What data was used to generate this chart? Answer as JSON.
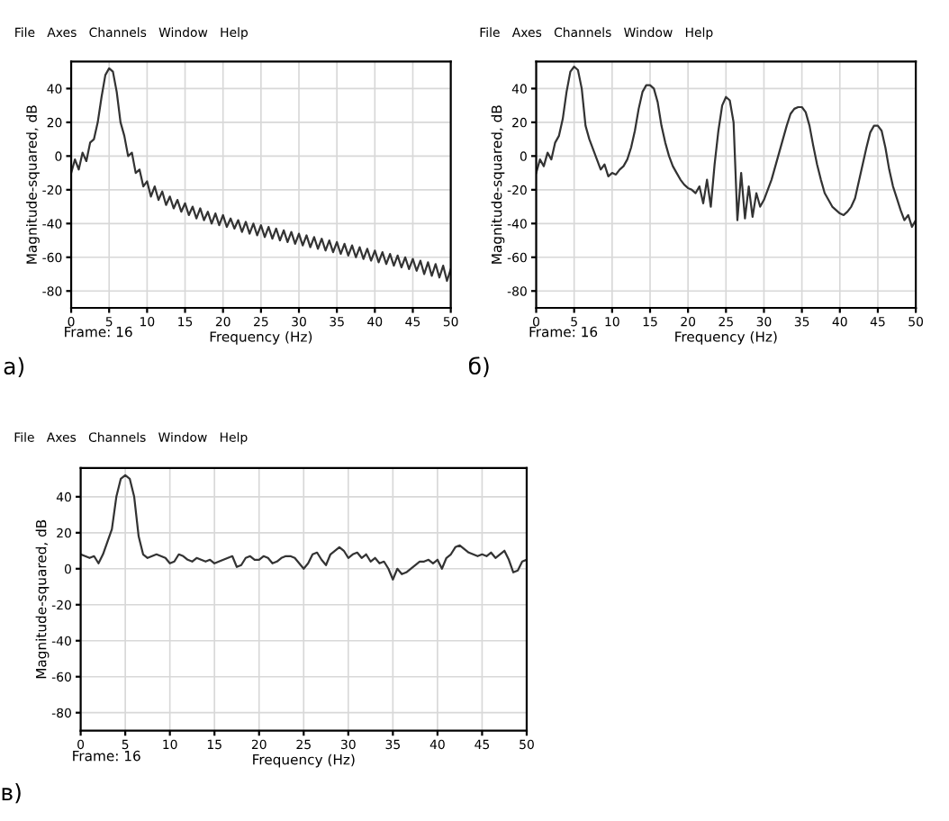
{
  "chart_data": [
    {
      "type": "line",
      "xlabel": "Frequency (Hz)",
      "ylabel": "Magnitude-squared, dB",
      "annotations": [
        "File   Axes   Channels   Window   Help",
        "Frame: 16",
        "а)"
      ],
      "xlim": [
        0,
        50
      ],
      "ylim": [
        -90,
        56
      ],
      "xticks": [
        0,
        5,
        10,
        15,
        20,
        25,
        30,
        35,
        40,
        45,
        50
      ],
      "yticks": [
        -80,
        -60,
        -40,
        -20,
        0,
        20,
        40
      ],
      "grid": true,
      "line_style": "solid",
      "x": [
        0,
        0.5,
        1,
        1.5,
        2,
        2.5,
        3,
        3.5,
        4,
        4.5,
        5,
        5.5,
        6,
        6.5,
        7,
        7.5,
        8,
        8.5,
        9,
        9.5,
        10,
        10.5,
        11,
        11.5,
        12,
        12.5,
        13,
        13.5,
        14,
        14.5,
        15,
        15.5,
        16,
        16.5,
        17,
        17.5,
        18,
        18.5,
        19,
        19.5,
        20,
        20.5,
        21,
        21.5,
        22,
        22.5,
        23,
        23.5,
        24,
        24.5,
        25,
        25.5,
        26,
        26.5,
        27,
        27.5,
        28,
        28.5,
        29,
        29.5,
        30,
        30.5,
        31,
        31.5,
        32,
        32.5,
        33,
        33.5,
        34,
        34.5,
        35,
        35.5,
        36,
        36.5,
        37,
        37.5,
        38,
        38.5,
        39,
        39.5,
        40,
        40.5,
        41,
        41.5,
        42,
        42.5,
        43,
        43.5,
        44,
        44.5,
        45,
        45.5,
        46,
        46.5,
        47,
        47.5,
        48,
        48.5,
        49,
        49.5,
        50
      ],
      "series": [
        {
          "color": "#333333",
          "values": [
            -10,
            -2,
            -8,
            2,
            -3,
            8,
            10,
            20,
            35,
            48,
            52,
            50,
            38,
            20,
            12,
            0,
            2,
            -10,
            -8,
            -18,
            -15,
            -24,
            -18,
            -26,
            -21,
            -29,
            -24,
            -31,
            -26,
            -33,
            -28,
            -35,
            -30,
            -37,
            -31,
            -38,
            -33,
            -40,
            -34,
            -41,
            -35,
            -42,
            -37,
            -43,
            -38,
            -45,
            -39,
            -46,
            -40,
            -47,
            -41,
            -48,
            -42,
            -49,
            -43,
            -50,
            -44,
            -51,
            -45,
            -52,
            -46,
            -53,
            -47,
            -54,
            -48,
            -55,
            -49,
            -56,
            -50,
            -57,
            -51,
            -58,
            -52,
            -59,
            -53,
            -60,
            -54,
            -61,
            -55,
            -62,
            -56,
            -63,
            -57,
            -64,
            -58,
            -65,
            -59,
            -66,
            -60,
            -67,
            -61,
            -68,
            -62,
            -70,
            -63,
            -71,
            -64,
            -72,
            -65,
            -74,
            -67
          ]
        }
      ]
    },
    {
      "type": "line",
      "xlabel": "Frequency (Hz)",
      "ylabel": "Magnitude-squared, dB",
      "annotations": [
        "File   Axes   Channels   Window   Help",
        "Frame: 16",
        "б)"
      ],
      "xlim": [
        0,
        50
      ],
      "ylim": [
        -90,
        56
      ],
      "xticks": [
        0,
        5,
        10,
        15,
        20,
        25,
        30,
        35,
        40,
        45,
        50
      ],
      "yticks": [
        -80,
        -60,
        -40,
        -20,
        0,
        20,
        40
      ],
      "grid": true,
      "line_style": "solid",
      "x": [
        0,
        0.5,
        1,
        1.5,
        2,
        2.5,
        3,
        3.5,
        4,
        4.5,
        5,
        5.5,
        6,
        6.5,
        7,
        7.5,
        8,
        8.5,
        9,
        9.5,
        10,
        10.5,
        11,
        11.5,
        12,
        12.5,
        13,
        13.5,
        14,
        14.5,
        15,
        15.5,
        16,
        16.5,
        17,
        17.5,
        18,
        18.5,
        19,
        19.5,
        20,
        20.5,
        21,
        21.5,
        22,
        22.5,
        23,
        23.5,
        24,
        24.5,
        25,
        25.5,
        26,
        26.5,
        27,
        27.5,
        28,
        28.5,
        29,
        29.5,
        30,
        30.5,
        31,
        31.5,
        32,
        32.5,
        33,
        33.5,
        34,
        34.5,
        35,
        35.5,
        36,
        36.5,
        37,
        37.5,
        38,
        38.5,
        39,
        39.5,
        40,
        40.5,
        41,
        41.5,
        42,
        42.5,
        43,
        43.5,
        44,
        44.5,
        45,
        45.5,
        46,
        46.5,
        47,
        47.5,
        48,
        48.5,
        49,
        49.5,
        50
      ],
      "series": [
        {
          "color": "#333333",
          "values": [
            -10,
            -2,
            -6,
            2,
            -2,
            8,
            12,
            22,
            38,
            50,
            53,
            51,
            40,
            18,
            10,
            4,
            -2,
            -8,
            -5,
            -12,
            -10,
            -11,
            -8,
            -6,
            -2,
            5,
            15,
            28,
            38,
            42,
            42,
            40,
            32,
            18,
            8,
            0,
            -6,
            -10,
            -14,
            -17,
            -19,
            -20,
            -22,
            -18,
            -28,
            -14,
            -30,
            -5,
            15,
            30,
            35,
            33,
            20,
            -38,
            -10,
            -37,
            -18,
            -36,
            -22,
            -30,
            -26,
            -20,
            -14,
            -6,
            2,
            10,
            18,
            25,
            28,
            29,
            29,
            26,
            18,
            6,
            -5,
            -14,
            -22,
            -26,
            -30,
            -32,
            -34,
            -35,
            -33,
            -30,
            -25,
            -15,
            -5,
            5,
            14,
            18,
            18,
            15,
            5,
            -8,
            -18,
            -25,
            -32,
            -38,
            -35,
            -42,
            -38
          ]
        }
      ]
    },
    {
      "type": "line",
      "xlabel": "Frequency (Hz)",
      "ylabel": "Magnitude-squared, dB",
      "annotations": [
        "File   Axes   Channels   Window   Help",
        "Frame: 16",
        "в)"
      ],
      "xlim": [
        0,
        50
      ],
      "ylim": [
        -90,
        56
      ],
      "xticks": [
        0,
        5,
        10,
        15,
        20,
        25,
        30,
        35,
        40,
        45,
        50
      ],
      "yticks": [
        -80,
        -60,
        -40,
        -20,
        0,
        20,
        40
      ],
      "grid": true,
      "line_style": "solid",
      "x": [
        0,
        0.5,
        1,
        1.5,
        2,
        2.5,
        3,
        3.5,
        4,
        4.5,
        5,
        5.5,
        6,
        6.5,
        7,
        7.5,
        8,
        8.5,
        9,
        9.5,
        10,
        10.5,
        11,
        11.5,
        12,
        12.5,
        13,
        13.5,
        14,
        14.5,
        15,
        15.5,
        16,
        16.5,
        17,
        17.5,
        18,
        18.5,
        19,
        19.5,
        20,
        20.5,
        21,
        21.5,
        22,
        22.5,
        23,
        23.5,
        24,
        24.5,
        25,
        25.5,
        26,
        26.5,
        27,
        27.5,
        28,
        28.5,
        29,
        29.5,
        30,
        30.5,
        31,
        31.5,
        32,
        32.5,
        33,
        33.5,
        34,
        34.5,
        35,
        35.5,
        36,
        36.5,
        37,
        37.5,
        38,
        38.5,
        39,
        39.5,
        40,
        40.5,
        41,
        41.5,
        42,
        42.5,
        43,
        43.5,
        44,
        44.5,
        45,
        45.5,
        46,
        46.5,
        47,
        47.5,
        48,
        48.5,
        49,
        49.5,
        50
      ],
      "series": [
        {
          "color": "#333333",
          "values": [
            8,
            7,
            6,
            7,
            3,
            8,
            15,
            22,
            40,
            50,
            52,
            50,
            40,
            18,
            8,
            6,
            7,
            8,
            7,
            6,
            3,
            4,
            8,
            7,
            5,
            4,
            6,
            5,
            4,
            5,
            3,
            4,
            5,
            6,
            7,
            1,
            2,
            6,
            7,
            5,
            5,
            7,
            6,
            3,
            4,
            6,
            7,
            7,
            6,
            3,
            0,
            3,
            8,
            9,
            5,
            2,
            8,
            10,
            12,
            10,
            6,
            8,
            9,
            6,
            8,
            4,
            6,
            3,
            4,
            0,
            -6,
            0,
            -3,
            -2,
            0,
            2,
            4,
            4,
            5,
            3,
            5,
            0,
            6,
            8,
            12,
            13,
            11,
            9,
            8,
            7,
            8,
            7,
            9,
            6,
            8,
            10,
            5,
            -2,
            -1,
            4,
            5
          ]
        }
      ]
    }
  ]
}
